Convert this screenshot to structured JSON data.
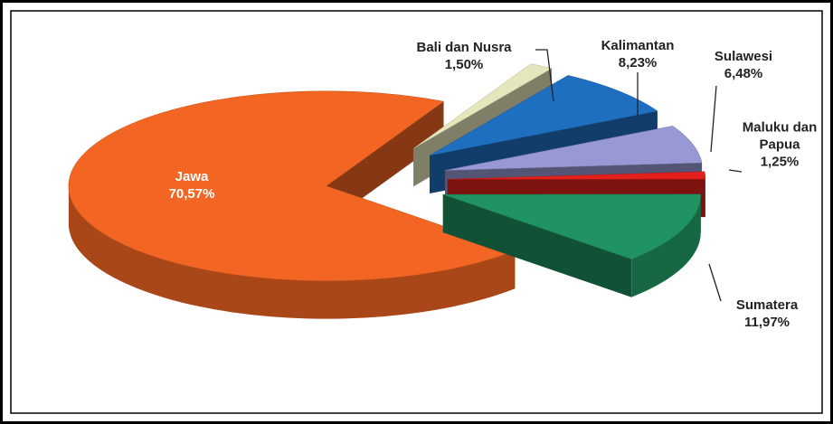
{
  "chart_data": {
    "type": "pie3d",
    "categories": [
      "Jawa",
      "Bali dan Nusra",
      "Kalimantan",
      "Sulawesi",
      "Maluku dan Papua",
      "Sumatera"
    ],
    "values": [
      70.57,
      1.5,
      8.23,
      6.48,
      1.25,
      11.97
    ],
    "value_labels": [
      "70,57%",
      "1,50%",
      "8,23%",
      "6,48%",
      "1,25%",
      "11,97%"
    ],
    "colors": [
      "#f26522",
      "#e6e6bd",
      "#1f6fc0",
      "#9898d4",
      "#e3201b",
      "#1f9462"
    ]
  }
}
